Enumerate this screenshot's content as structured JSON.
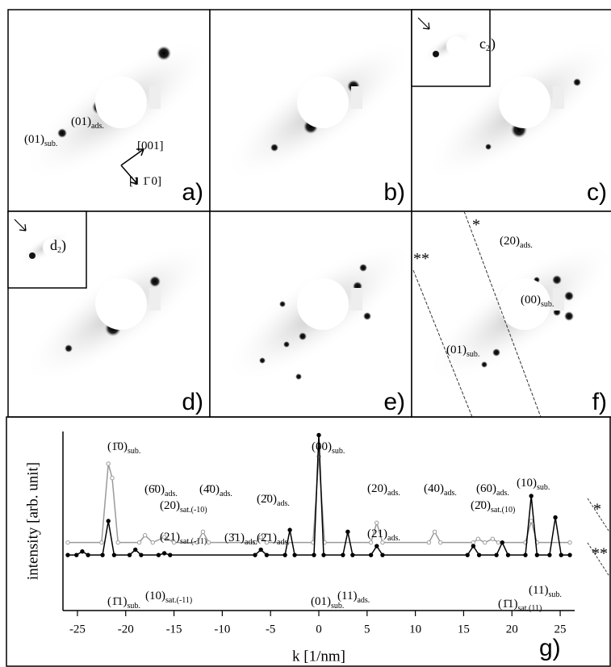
{
  "panels": [
    {
      "label": "a)",
      "annotations": [
        {
          "text": "(01)",
          "sub": "sub."
        },
        {
          "text": "(01)",
          "sub": "ads."
        },
        {
          "text": "[001]",
          "sub": ""
        },
        {
          "text": "[1 1̄ 0]",
          "sub": ""
        }
      ]
    },
    {
      "label": "b)",
      "annotations": []
    },
    {
      "label": "c)",
      "annotations": [
        {
          "text": "c",
          "sub": "2"
        },
        {
          "text": ")",
          "sub": ""
        }
      ]
    },
    {
      "label": "d)",
      "annotations": [
        {
          "text": "d",
          "sub": "2"
        },
        {
          "text": ")",
          "sub": ""
        }
      ]
    },
    {
      "label": "e)",
      "annotations": []
    },
    {
      "label": "f)",
      "annotations": [
        {
          "text": "*",
          "sub": ""
        },
        {
          "text": "**",
          "sub": ""
        },
        {
          "text": "(20)",
          "sub": "ads."
        },
        {
          "text": "(00)",
          "sub": "sub."
        },
        {
          "text": "(01)",
          "sub": "sub."
        }
      ]
    }
  ],
  "chart_data": {
    "type": "line",
    "panel_label": "g)",
    "xlabel": "k [1/nm]",
    "ylabel": "intensity [arb. unit]",
    "xlim": [
      -26.5,
      26.5
    ],
    "xticks": [
      -25,
      -20,
      -15,
      -10,
      -5,
      0,
      5,
      10,
      15,
      20,
      25
    ],
    "ylim": [
      0,
      100
    ],
    "series": [
      {
        "name": "*",
        "color": "#9a9a9a",
        "x": [
          -26,
          -22.5,
          -21.8,
          -21.4,
          -20.8,
          -18.6,
          -18,
          -17.2,
          -16,
          -15,
          -12.6,
          -12,
          -11.4,
          -6.6,
          -6,
          -5.4,
          -0.6,
          0,
          0.6,
          5.4,
          6,
          6.6,
          11.4,
          12,
          12.6,
          16,
          16.5,
          17.2,
          18,
          18.6,
          21.4,
          22,
          22.6,
          26
        ],
        "values": [
          38,
          38,
          82,
          74,
          38,
          38,
          42,
          38,
          41,
          38,
          38,
          44,
          38,
          38,
          41,
          38,
          38,
          86,
          38,
          38,
          49,
          38,
          38,
          44,
          38,
          38,
          40,
          38,
          40,
          38,
          38,
          50,
          38,
          38
        ]
      },
      {
        "name": "**",
        "color": "#000000",
        "x": [
          -26,
          -25.1,
          -24.5,
          -23.9,
          -22.4,
          -21.8,
          -21.2,
          -19.6,
          -19,
          -18.4,
          -16.6,
          -16,
          -15.4,
          -6.6,
          -6,
          -5.4,
          -3.5,
          -3,
          -2.5,
          -0.5,
          0,
          0.5,
          2.5,
          3,
          3.5,
          5.4,
          6,
          6.6,
          15.4,
          16,
          16.6,
          18.4,
          19,
          19.6,
          21.4,
          22,
          22.6,
          23.9,
          24.5,
          25.1,
          26
        ],
        "values": [
          31,
          31,
          33,
          31,
          31,
          50,
          31,
          31,
          34,
          31,
          31,
          32,
          31,
          31,
          34,
          31,
          31,
          45,
          31,
          31,
          98,
          31,
          31,
          44,
          31,
          31,
          36,
          31,
          31,
          36,
          31,
          31,
          38,
          31,
          31,
          64,
          31,
          31,
          52,
          31,
          31
        ]
      }
    ],
    "annotations": [
      {
        "text": "(1̄0)",
        "sub": "sub."
      },
      {
        "text": "(6̄0)",
        "sub": "ads."
      },
      {
        "text": "(20)",
        "sub": "sat.(-10)"
      },
      {
        "text": "(4̄0)",
        "sub": "ads."
      },
      {
        "text": "(2̄0)",
        "sub": "ads."
      },
      {
        "text": "(00)",
        "sub": "sub."
      },
      {
        "text": "(20)",
        "sub": "ads."
      },
      {
        "text": "(40)",
        "sub": "ads."
      },
      {
        "text": "(60)",
        "sub": "ads."
      },
      {
        "text": "(2̄0)",
        "sub": "sat.(10)"
      },
      {
        "text": "(10)",
        "sub": "sub."
      },
      {
        "text": "(21)",
        "sub": "sat.(-11)"
      },
      {
        "text": "(3̄1)",
        "sub": "ads."
      },
      {
        "text": "(2̄1)",
        "sub": "ads."
      },
      {
        "text": "(21)",
        "sub": "ads."
      },
      {
        "text": "(1̄1)",
        "sub": "sub."
      },
      {
        "text": "(10)",
        "sub": "sat.(-11)"
      },
      {
        "text": "(01)",
        "sub": "sub."
      },
      {
        "text": "(11)",
        "sub": "ads."
      },
      {
        "text": "(1̄1)",
        "sub": "sat.(11)"
      },
      {
        "text": "(11)",
        "sub": "sub."
      }
    ]
  }
}
